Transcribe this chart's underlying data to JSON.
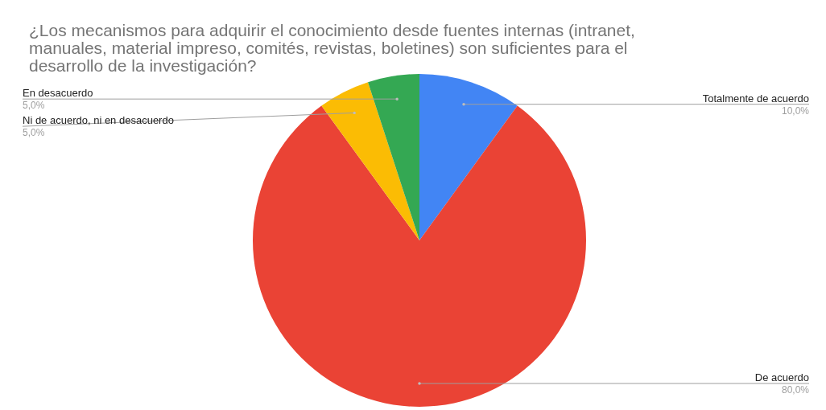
{
  "chart_data": {
    "type": "pie",
    "title": "¿Los mecanismos para adquirir el conocimiento desde fuentes internas (intranet, manuales, material impreso, comités, revistas, boletines) son suficientes para el desarrollo de la investigación?",
    "categories": [
      "Totalmente de acuerdo",
      "De acuerdo",
      "Ni de acuerdo, ni en desacuerdo",
      "En desacuerdo"
    ],
    "values": [
      10,
      80,
      5,
      5
    ],
    "colors": [
      "#4285f4",
      "#ea4335",
      "#fbbc04",
      "#34a853"
    ],
    "value_labels": [
      "10,0%",
      "80,0%",
      "5,0%",
      "5,0%"
    ]
  }
}
